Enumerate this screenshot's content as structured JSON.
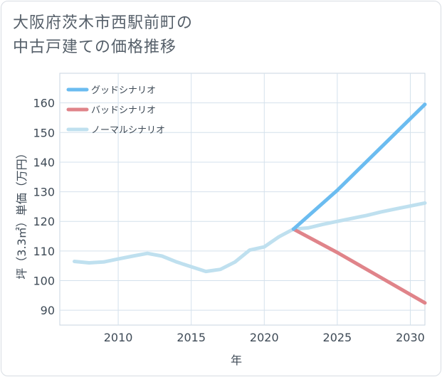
{
  "title_line1": "大阪府茨木市西駅前町の",
  "title_line2": "中古戸建ての価格推移",
  "chart_data": {
    "type": "line",
    "xlabel": "年",
    "ylabel": "坪（3.3㎡）単価（万円）",
    "xlim": [
      2006,
      2031
    ],
    "ylim": [
      85,
      170
    ],
    "x_ticks": [
      2010,
      2015,
      2020,
      2025,
      2030
    ],
    "y_ticks": [
      90,
      100,
      110,
      120,
      130,
      140,
      150,
      160
    ],
    "grid": true,
    "legend_position": "top-left",
    "series": [
      {
        "name": "グッドシナリオ",
        "color": "#6bbcf0",
        "points": [
          [
            2022,
            117.4
          ],
          [
            2025,
            130.5
          ],
          [
            2031,
            159.5
          ]
        ]
      },
      {
        "name": "バッドシナリオ",
        "color": "#e0848a",
        "points": [
          [
            2022,
            117.4
          ],
          [
            2025,
            109.5
          ],
          [
            2031,
            92.5
          ]
        ]
      },
      {
        "name": "ノーマルシナリオ",
        "color": "#bfe0ef",
        "points": [
          [
            2007,
            106.5
          ],
          [
            2008,
            106.0
          ],
          [
            2009,
            106.3
          ],
          [
            2010,
            107.3
          ],
          [
            2011,
            108.3
          ],
          [
            2012,
            109.2
          ],
          [
            2013,
            108.3
          ],
          [
            2014,
            106.3
          ],
          [
            2015,
            104.7
          ],
          [
            2016,
            103.1
          ],
          [
            2017,
            103.8
          ],
          [
            2018,
            106.3
          ],
          [
            2019,
            110.3
          ],
          [
            2020,
            111.4
          ],
          [
            2021,
            114.8
          ],
          [
            2022,
            117.4
          ],
          [
            2023,
            117.8
          ],
          [
            2024,
            119.0
          ],
          [
            2025,
            120.0
          ],
          [
            2026,
            121.0
          ],
          [
            2027,
            122.0
          ],
          [
            2028,
            123.2
          ],
          [
            2029,
            124.2
          ],
          [
            2030,
            125.2
          ],
          [
            2031,
            126.2
          ]
        ]
      }
    ]
  }
}
